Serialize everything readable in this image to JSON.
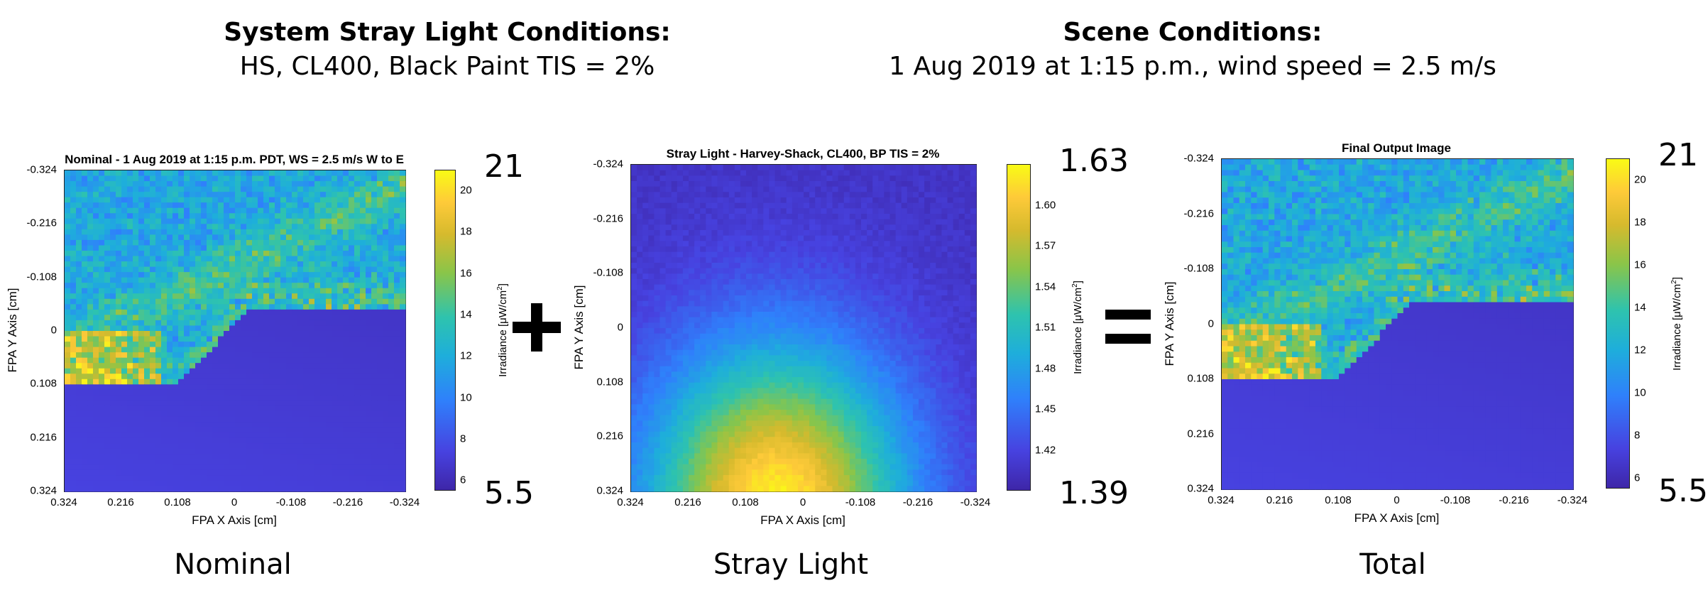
{
  "header_left": {
    "title": "System Stray Light Conditions:",
    "subtitle": "HS, CL400, Black Paint TIS = 2%"
  },
  "header_right": {
    "title": "Scene Conditions:",
    "subtitle": "1 Aug 2019 at 1:15 p.m., wind speed = 2.5 m/s"
  },
  "operators": {
    "plus": "+",
    "equals": "="
  },
  "chart_data": [
    {
      "type": "heatmap",
      "title": "Nominal - 1 Aug 2019 at 1:15 p.m. PDT, WS = 2.5 m/s W to E",
      "xlabel": "FPA X Axis [cm]",
      "ylabel": "FPA Y Axis [cm]",
      "x_ticks": [
        "0.324",
        "0.216",
        "0.108",
        "0",
        "-0.108",
        "-0.216",
        "-0.324"
      ],
      "y_ticks": [
        "-0.324",
        "-0.216",
        "-0.108",
        "0",
        "0.108",
        "0.216",
        "0.324"
      ],
      "xlim": [
        0.324,
        -0.324
      ],
      "ylim": [
        -0.324,
        0.324
      ],
      "colorbar": {
        "label": "Irradiance [μW/cm2]",
        "ticks": [
          "20",
          "18",
          "16",
          "14",
          "12",
          "10",
          "8",
          "6"
        ],
        "tick_values": [
          20,
          18,
          16,
          14,
          12,
          10,
          8,
          6
        ],
        "range": [
          5.5,
          21
        ],
        "max_annotation": "21",
        "min_annotation": "5.5"
      },
      "colormap": "parula",
      "caption": "Nominal",
      "scene": "coastline"
    },
    {
      "type": "heatmap",
      "title": "Stray Light - Harvey-Shack, CL400, BP TIS = 2%",
      "xlabel": "FPA X Axis [cm]",
      "ylabel": "FPA Y Axis [cm]",
      "x_ticks": [
        "0.324",
        "0.216",
        "0.108",
        "0",
        "-0.108",
        "-0.216",
        "-0.324"
      ],
      "y_ticks": [
        "-0.324",
        "-0.216",
        "-0.108",
        "0",
        "0.108",
        "0.216",
        "0.324"
      ],
      "xlim": [
        0.324,
        -0.324
      ],
      "ylim": [
        -0.324,
        0.324
      ],
      "colorbar": {
        "label": "Irradiance [μW/cm2]",
        "ticks": [
          "1.60",
          "1.57",
          "1.54",
          "1.51",
          "1.48",
          "1.45",
          "1.42"
        ],
        "tick_values": [
          1.6,
          1.57,
          1.54,
          1.51,
          1.48,
          1.45,
          1.42
        ],
        "range": [
          1.39,
          1.63
        ],
        "max_annotation": "1.63",
        "min_annotation": "1.39"
      },
      "colormap": "parula",
      "caption": "Stray Light",
      "scene": "stray"
    },
    {
      "type": "heatmap",
      "title": "Final Output Image",
      "xlabel": "FPA X Axis [cm]",
      "ylabel": "FPA Y Axis [cm]",
      "x_ticks": [
        "0.324",
        "0.216",
        "0.108",
        "0",
        "-0.108",
        "-0.216",
        "-0.324"
      ],
      "y_ticks": [
        "-0.324",
        "-0.216",
        "-0.108",
        "0",
        "0.108",
        "0.216",
        "0.324"
      ],
      "xlim": [
        0.324,
        -0.324
      ],
      "ylim": [
        -0.324,
        0.324
      ],
      "colorbar": {
        "label": "Irradiance [μW/cm2]",
        "ticks": [
          "20",
          "18",
          "16",
          "14",
          "12",
          "10",
          "8",
          "6"
        ],
        "tick_values": [
          20,
          18,
          16,
          14,
          12,
          10,
          8,
          6
        ],
        "range": [
          5.5,
          21
        ],
        "max_annotation": "21",
        "min_annotation": "5.5"
      },
      "colormap": "parula",
      "caption": "Total",
      "scene": "coastline"
    }
  ]
}
